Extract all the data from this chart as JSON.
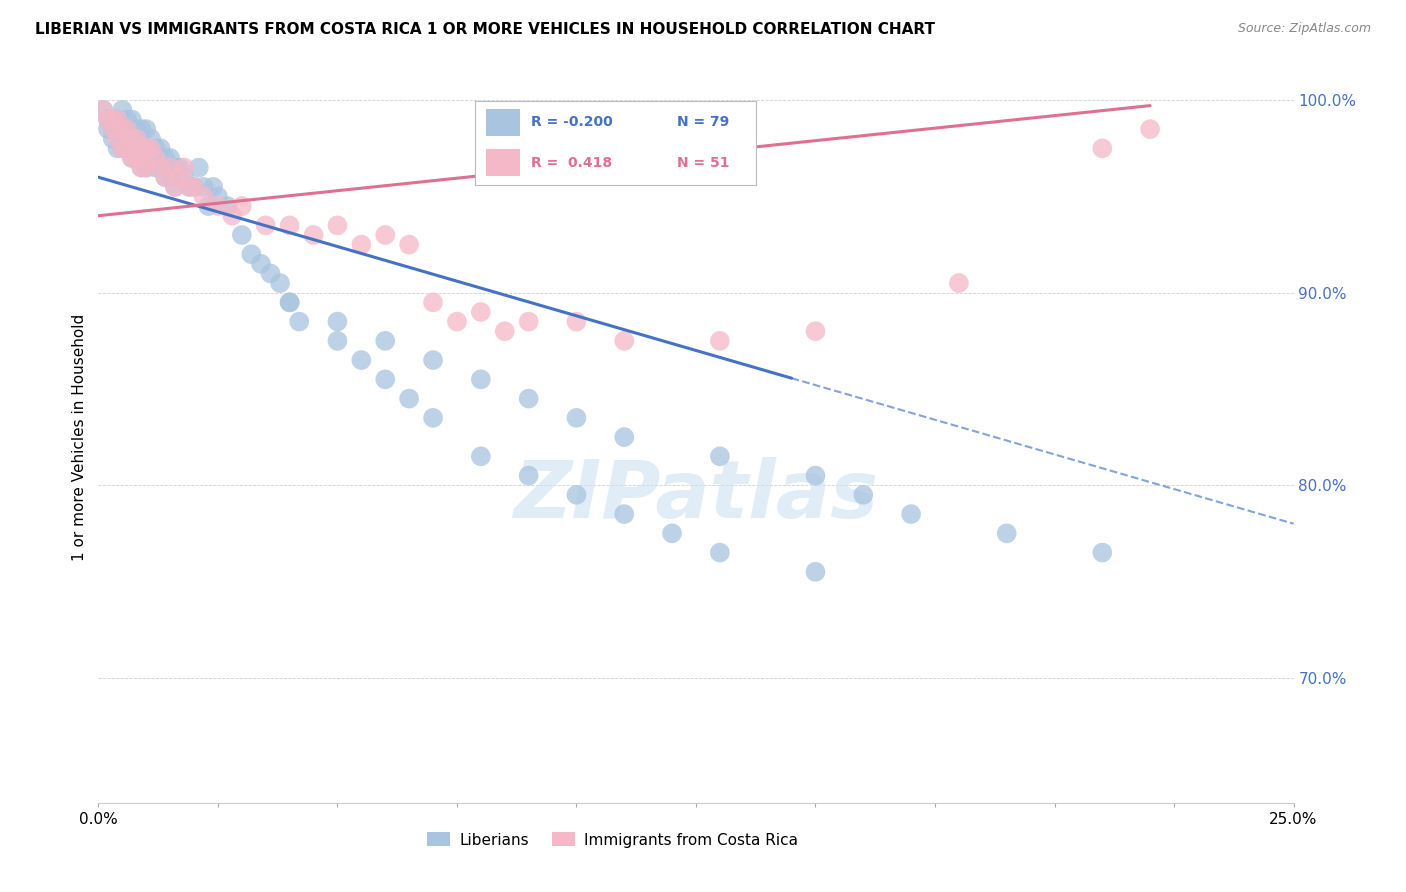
{
  "title": "LIBERIAN VS IMMIGRANTS FROM COSTA RICA 1 OR MORE VEHICLES IN HOUSEHOLD CORRELATION CHART",
  "source": "Source: ZipAtlas.com",
  "ylabel": "1 or more Vehicles in Household",
  "xlim": [
    0.0,
    0.25
  ],
  "ylim": [
    0.635,
    1.015
  ],
  "yticks": [
    0.7,
    0.8,
    0.9,
    1.0
  ],
  "ytick_labels": [
    "70.0%",
    "80.0%",
    "90.0%",
    "100.0%"
  ],
  "xticks": [
    0.0,
    0.025,
    0.05,
    0.075,
    0.1,
    0.125,
    0.15,
    0.175,
    0.2,
    0.225,
    0.25
  ],
  "blue_color": "#a8c4e0",
  "pink_color": "#f4b8c8",
  "blue_line_color": "#4472c4",
  "pink_line_color": "#e07090",
  "watermark_color": "#cce0f0",
  "blue_scatter_x": [
    0.001,
    0.002,
    0.002,
    0.003,
    0.003,
    0.004,
    0.004,
    0.005,
    0.005,
    0.005,
    0.006,
    0.006,
    0.006,
    0.007,
    0.007,
    0.007,
    0.008,
    0.008,
    0.009,
    0.009,
    0.009,
    0.01,
    0.01,
    0.01,
    0.011,
    0.011,
    0.012,
    0.012,
    0.013,
    0.013,
    0.014,
    0.014,
    0.015,
    0.015,
    0.016,
    0.016,
    0.017,
    0.018,
    0.019,
    0.02,
    0.021,
    0.022,
    0.023,
    0.024,
    0.025,
    0.027,
    0.03,
    0.032,
    0.034,
    0.036,
    0.038,
    0.04,
    0.042,
    0.05,
    0.055,
    0.06,
    0.065,
    0.07,
    0.08,
    0.09,
    0.1,
    0.11,
    0.12,
    0.13,
    0.15,
    0.04,
    0.05,
    0.06,
    0.07,
    0.08,
    0.09,
    0.1,
    0.11,
    0.13,
    0.15,
    0.16,
    0.17,
    0.19,
    0.21
  ],
  "blue_scatter_y": [
    0.995,
    0.99,
    0.985,
    0.985,
    0.98,
    0.99,
    0.975,
    0.995,
    0.98,
    0.975,
    0.99,
    0.985,
    0.975,
    0.99,
    0.98,
    0.97,
    0.985,
    0.975,
    0.985,
    0.975,
    0.965,
    0.985,
    0.975,
    0.965,
    0.98,
    0.97,
    0.975,
    0.965,
    0.975,
    0.965,
    0.97,
    0.96,
    0.97,
    0.96,
    0.965,
    0.955,
    0.965,
    0.96,
    0.955,
    0.955,
    0.965,
    0.955,
    0.945,
    0.955,
    0.95,
    0.945,
    0.93,
    0.92,
    0.915,
    0.91,
    0.905,
    0.895,
    0.885,
    0.875,
    0.865,
    0.855,
    0.845,
    0.835,
    0.815,
    0.805,
    0.795,
    0.785,
    0.775,
    0.765,
    0.755,
    0.895,
    0.885,
    0.875,
    0.865,
    0.855,
    0.845,
    0.835,
    0.825,
    0.815,
    0.805,
    0.795,
    0.785,
    0.775,
    0.765
  ],
  "pink_scatter_x": [
    0.001,
    0.002,
    0.003,
    0.003,
    0.004,
    0.004,
    0.005,
    0.005,
    0.006,
    0.006,
    0.007,
    0.007,
    0.008,
    0.008,
    0.009,
    0.009,
    0.01,
    0.01,
    0.011,
    0.012,
    0.013,
    0.014,
    0.015,
    0.016,
    0.017,
    0.018,
    0.019,
    0.02,
    0.022,
    0.025,
    0.028,
    0.03,
    0.035,
    0.04,
    0.045,
    0.05,
    0.055,
    0.06,
    0.065,
    0.07,
    0.075,
    0.08,
    0.085,
    0.09,
    0.1,
    0.11,
    0.13,
    0.15,
    0.18,
    0.21,
    0.22
  ],
  "pink_scatter_y": [
    0.995,
    0.99,
    0.99,
    0.985,
    0.99,
    0.98,
    0.985,
    0.975,
    0.985,
    0.975,
    0.98,
    0.97,
    0.98,
    0.97,
    0.975,
    0.965,
    0.975,
    0.965,
    0.975,
    0.97,
    0.965,
    0.96,
    0.965,
    0.955,
    0.96,
    0.965,
    0.955,
    0.955,
    0.95,
    0.945,
    0.94,
    0.945,
    0.935,
    0.935,
    0.93,
    0.935,
    0.925,
    0.93,
    0.925,
    0.895,
    0.885,
    0.89,
    0.88,
    0.885,
    0.885,
    0.875,
    0.875,
    0.88,
    0.905,
    0.975,
    0.985
  ],
  "blue_trend_x0": 0.0,
  "blue_trend_x_solid_end": 0.145,
  "blue_trend_x_end": 0.25,
  "blue_trend_y0": 0.96,
  "blue_trend_slope": -0.72,
  "pink_trend_x0": 0.0,
  "pink_trend_x_end": 0.22,
  "pink_trend_y0": 0.94,
  "pink_trend_slope": 0.26
}
